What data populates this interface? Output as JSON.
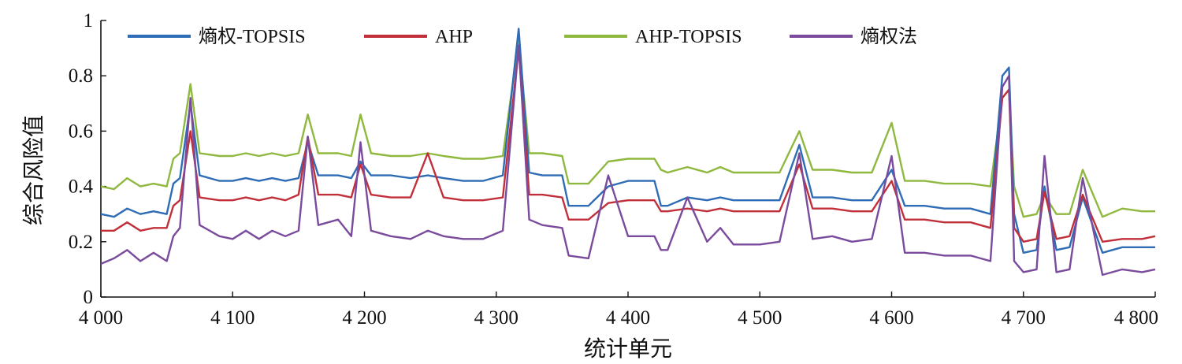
{
  "chart_data": {
    "type": "line",
    "xlabel": "统计单元",
    "ylabel": "综合风险值",
    "xlim": [
      4000,
      4800
    ],
    "ylim": [
      0,
      1
    ],
    "x_ticks": [
      4000,
      4100,
      4200,
      4300,
      4400,
      4500,
      4600,
      4700,
      4800
    ],
    "x_tick_labels": [
      "4 000",
      "4 100",
      "4 200",
      "4 300",
      "4 400",
      "4 500",
      "4 600",
      "4 700",
      "4 800"
    ],
    "y_ticks": [
      0,
      0.2,
      0.4,
      0.6,
      0.8,
      1
    ],
    "y_tick_labels": [
      "0",
      "0.2",
      "0.4",
      "0.6",
      "0.8",
      "1"
    ],
    "grid": false,
    "legend_position": "top",
    "x": [
      4000,
      4010,
      4020,
      4030,
      4040,
      4050,
      4055,
      4060,
      4068,
      4075,
      4090,
      4100,
      4110,
      4120,
      4130,
      4140,
      4150,
      4157,
      4165,
      4180,
      4190,
      4197,
      4205,
      4220,
      4235,
      4248,
      4260,
      4275,
      4290,
      4305,
      4317,
      4325,
      4335,
      4350,
      4355,
      4370,
      4385,
      4400,
      4420,
      4425,
      4430,
      4445,
      4460,
      4470,
      4480,
      4500,
      4515,
      4530,
      4540,
      4555,
      4570,
      4585,
      4600,
      4610,
      4625,
      4640,
      4660,
      4675,
      4684,
      4689,
      4693,
      4700,
      4710,
      4716,
      4725,
      4735,
      4745,
      4760,
      4775,
      4790,
      4800
    ],
    "series": [
      {
        "name": "熵权-TOPSIS",
        "color": "#2e6cb5",
        "values": [
          0.3,
          0.29,
          0.32,
          0.3,
          0.31,
          0.3,
          0.41,
          0.43,
          0.7,
          0.44,
          0.42,
          0.42,
          0.43,
          0.42,
          0.43,
          0.42,
          0.43,
          0.56,
          0.44,
          0.44,
          0.43,
          0.49,
          0.44,
          0.44,
          0.43,
          0.44,
          0.43,
          0.42,
          0.42,
          0.44,
          0.97,
          0.45,
          0.44,
          0.44,
          0.33,
          0.33,
          0.4,
          0.42,
          0.42,
          0.33,
          0.33,
          0.36,
          0.35,
          0.36,
          0.35,
          0.35,
          0.35,
          0.55,
          0.36,
          0.36,
          0.35,
          0.35,
          0.46,
          0.33,
          0.33,
          0.32,
          0.32,
          0.3,
          0.8,
          0.83,
          0.3,
          0.16,
          0.17,
          0.4,
          0.17,
          0.18,
          0.36,
          0.16,
          0.18,
          0.18,
          0.18
        ]
      },
      {
        "name": "AHP",
        "color": "#c1303a",
        "values": [
          0.24,
          0.24,
          0.27,
          0.24,
          0.25,
          0.25,
          0.33,
          0.35,
          0.6,
          0.36,
          0.35,
          0.35,
          0.36,
          0.35,
          0.36,
          0.35,
          0.37,
          0.58,
          0.37,
          0.37,
          0.36,
          0.48,
          0.37,
          0.36,
          0.36,
          0.52,
          0.36,
          0.35,
          0.35,
          0.36,
          0.9,
          0.37,
          0.37,
          0.36,
          0.28,
          0.28,
          0.34,
          0.35,
          0.35,
          0.31,
          0.31,
          0.32,
          0.31,
          0.32,
          0.31,
          0.31,
          0.31,
          0.48,
          0.32,
          0.32,
          0.31,
          0.31,
          0.42,
          0.28,
          0.28,
          0.27,
          0.27,
          0.25,
          0.72,
          0.75,
          0.25,
          0.2,
          0.21,
          0.38,
          0.21,
          0.22,
          0.37,
          0.2,
          0.21,
          0.21,
          0.22
        ]
      },
      {
        "name": "AHP-TOPSIS",
        "color": "#8fb83f",
        "values": [
          0.4,
          0.39,
          0.43,
          0.4,
          0.41,
          0.4,
          0.5,
          0.52,
          0.77,
          0.52,
          0.51,
          0.51,
          0.52,
          0.51,
          0.52,
          0.51,
          0.52,
          0.66,
          0.52,
          0.52,
          0.51,
          0.66,
          0.52,
          0.51,
          0.51,
          0.52,
          0.51,
          0.5,
          0.5,
          0.51,
          0.93,
          0.52,
          0.52,
          0.51,
          0.41,
          0.41,
          0.49,
          0.5,
          0.5,
          0.46,
          0.45,
          0.47,
          0.45,
          0.47,
          0.45,
          0.45,
          0.45,
          0.6,
          0.46,
          0.46,
          0.45,
          0.45,
          0.63,
          0.42,
          0.42,
          0.41,
          0.41,
          0.4,
          0.72,
          0.75,
          0.4,
          0.29,
          0.3,
          0.37,
          0.3,
          0.3,
          0.46,
          0.29,
          0.32,
          0.31,
          0.31
        ]
      },
      {
        "name": "熵权法",
        "color": "#7a4b9c",
        "values": [
          0.12,
          0.14,
          0.17,
          0.13,
          0.16,
          0.13,
          0.22,
          0.25,
          0.72,
          0.26,
          0.22,
          0.21,
          0.24,
          0.21,
          0.24,
          0.22,
          0.24,
          0.58,
          0.26,
          0.28,
          0.22,
          0.56,
          0.24,
          0.22,
          0.21,
          0.24,
          0.22,
          0.21,
          0.21,
          0.24,
          0.91,
          0.28,
          0.26,
          0.25,
          0.15,
          0.14,
          0.44,
          0.22,
          0.22,
          0.17,
          0.17,
          0.36,
          0.2,
          0.25,
          0.19,
          0.19,
          0.2,
          0.52,
          0.21,
          0.22,
          0.2,
          0.21,
          0.51,
          0.16,
          0.16,
          0.15,
          0.15,
          0.13,
          0.76,
          0.8,
          0.13,
          0.09,
          0.1,
          0.51,
          0.09,
          0.1,
          0.43,
          0.08,
          0.1,
          0.09,
          0.1
        ]
      }
    ]
  }
}
